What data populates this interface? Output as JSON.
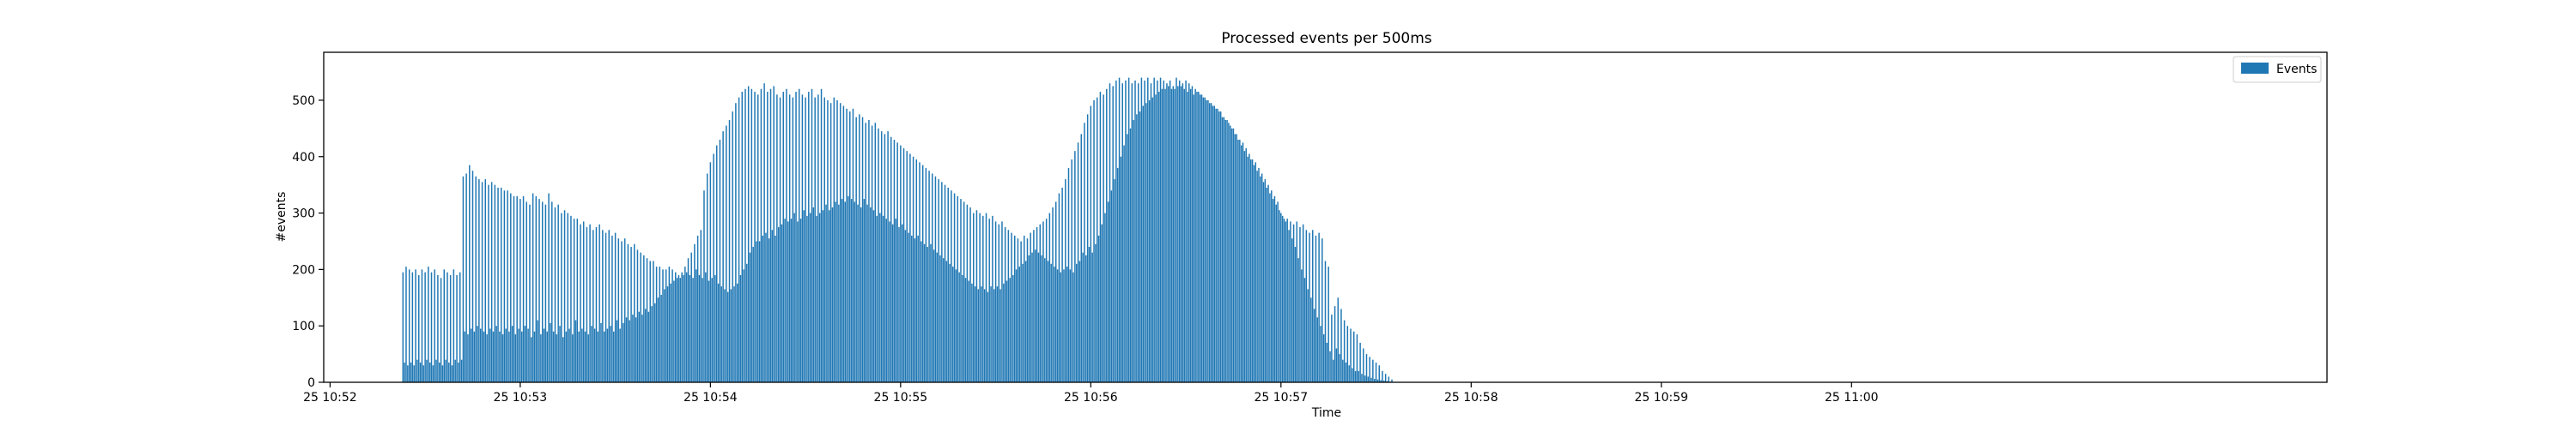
{
  "chart_data": {
    "type": "bar",
    "title": "Processed events per 500ms",
    "xlabel": "Time",
    "ylabel": "#events",
    "ylim": [
      0,
      585
    ],
    "xlim": [
      "25 10:51:58",
      "25 11:02:30"
    ],
    "yticks": [
      0,
      100,
      200,
      300,
      400,
      500
    ],
    "xticks": [
      {
        "t": "25 10:52:00",
        "label": "25 10:52"
      },
      {
        "t": "25 10:53:00",
        "label": "25 10:53"
      },
      {
        "t": "25 10:54:00",
        "label": "25 10:54"
      },
      {
        "t": "25 10:55:00",
        "label": "25 10:55"
      },
      {
        "t": "25 10:56:00",
        "label": "25 10:56"
      },
      {
        "t": "25 10:57:00",
        "label": "25 10:57"
      },
      {
        "t": "25 10:58:00",
        "label": "25 10:58"
      },
      {
        "t": "25 10:59:00",
        "label": "25 10:59"
      },
      {
        "t": "25 11:00:00",
        "label": "25 11:00"
      }
    ],
    "legend_position": "upper right",
    "grid": false,
    "series": [
      {
        "name": "Events",
        "color": "#1f77b4",
        "x_start": "25 10:52:23",
        "x_step_seconds": 0.5,
        "values": [
          195,
          35,
          205,
          30,
          200,
          35,
          195,
          30,
          200,
          40,
          190,
          35,
          200,
          30,
          195,
          40,
          205,
          35,
          195,
          30,
          200,
          40,
          190,
          35,
          185,
          30,
          200,
          40,
          195,
          35,
          190,
          30,
          200,
          40,
          190,
          35,
          195,
          40,
          365,
          90,
          370,
          85,
          385,
          95,
          375,
          90,
          365,
          100,
          360,
          95,
          355,
          90,
          360,
          85,
          350,
          95,
          355,
          90,
          350,
          100,
          345,
          90,
          345,
          85,
          340,
          95,
          340,
          90,
          335,
          100,
          330,
          85,
          330,
          95,
          325,
          90,
          330,
          100,
          320,
          95,
          315,
          80,
          335,
          90,
          330,
          110,
          325,
          85,
          320,
          95,
          315,
          90,
          335,
          105,
          320,
          90,
          310,
          85,
          315,
          100,
          300,
          80,
          305,
          90,
          300,
          95,
          295,
          85,
          290,
          110,
          290,
          90,
          280,
          95,
          285,
          90,
          275,
          85,
          280,
          100,
          270,
          95,
          275,
          90,
          280,
          105,
          270,
          90,
          265,
          95,
          270,
          100,
          260,
          90,
          265,
          110,
          255,
          95,
          250,
          105,
          255,
          115,
          245,
          110,
          240,
          120,
          245,
          115,
          235,
          125,
          230,
          120,
          225,
          130,
          220,
          125,
          215,
          135,
          215,
          140,
          205,
          150,
          205,
          155,
          200,
          165,
          200,
          170,
          205,
          175,
          200,
          180,
          195,
          185,
          190,
          185,
          195,
          190,
          205,
          195,
          220,
          190,
          230,
          185,
          245,
          200,
          260,
          190,
          270,
          185,
          340,
          195,
          370,
          180,
          390,
          185,
          405,
          190,
          420,
          175,
          430,
          170,
          445,
          165,
          455,
          160,
          465,
          165,
          480,
          170,
          495,
          175,
          505,
          190,
          515,
          200,
          520,
          210,
          525,
          230,
          520,
          240,
          515,
          250,
          510,
          250,
          520,
          260,
          530,
          265,
          515,
          255,
          520,
          270,
          525,
          260,
          510,
          275,
          505,
          280,
          515,
          290,
          520,
          285,
          510,
          290,
          505,
          300,
          515,
          285,
          520,
          290,
          510,
          305,
          505,
          295,
          515,
          300,
          520,
          310,
          505,
          295,
          510,
          300,
          520,
          305,
          505,
          315,
          500,
          305,
          495,
          310,
          505,
          320,
          500,
          315,
          495,
          325,
          490,
          320,
          485,
          330,
          480,
          325,
          485,
          320,
          470,
          315,
          475,
          310,
          470,
          325,
          460,
          315,
          465,
          310,
          455,
          305,
          460,
          295,
          450,
          300,
          445,
          295,
          440,
          290,
          445,
          285,
          435,
          280,
          430,
          290,
          425,
          275,
          420,
          280,
          415,
          270,
          410,
          265,
          405,
          260,
          400,
          255,
          395,
          260,
          390,
          250,
          385,
          245,
          380,
          240,
          375,
          245,
          370,
          235,
          365,
          230,
          360,
          225,
          355,
          220,
          350,
          215,
          345,
          210,
          340,
          205,
          335,
          200,
          330,
          195,
          325,
          190,
          320,
          185,
          315,
          180,
          310,
          175,
          300,
          170,
          305,
          165,
          300,
          170,
          295,
          165,
          300,
          160,
          290,
          170,
          295,
          165,
          285,
          170,
          280,
          165,
          285,
          175,
          275,
          180,
          270,
          185,
          265,
          190,
          260,
          200,
          255,
          205,
          250,
          210,
          260,
          215,
          255,
          225,
          265,
          230,
          270,
          235,
          275,
          230,
          280,
          225,
          285,
          220,
          290,
          215,
          300,
          210,
          310,
          205,
          320,
          200,
          335,
          195,
          345,
          200,
          360,
          205,
          380,
          200,
          395,
          195,
          410,
          210,
          425,
          215,
          440,
          230,
          460,
          225,
          475,
          240,
          490,
          230,
          500,
          245,
          505,
          260,
          515,
          280,
          510,
          300,
          520,
          320,
          530,
          340,
          525,
          360,
          535,
          380,
          540,
          400,
          530,
          420,
          535,
          440,
          540,
          450,
          530,
          465,
          535,
          475,
          530,
          480,
          540,
          490,
          535,
          495,
          540,
          500,
          530,
          505,
          540,
          510,
          535,
          515,
          540,
          520,
          535,
          520,
          530,
          525,
          535,
          520,
          525,
          520,
          540,
          525,
          535,
          525,
          530,
          520,
          535,
          515,
          530,
          520,
          525,
          510,
          520,
          515,
          515,
          510,
          510,
          505,
          505,
          500,
          500,
          495,
          495,
          490,
          490,
          485,
          485,
          480,
          480,
          470,
          470,
          465,
          465,
          460,
          455,
          450,
          450,
          440,
          440,
          430,
          430,
          420,
          425,
          410,
          415,
          400,
          405,
          395,
          395,
          385,
          390,
          375,
          380,
          365,
          370,
          355,
          360,
          345,
          350,
          335,
          340,
          325,
          330,
          315,
          320,
          305,
          300,
          295,
          290,
          285,
          290,
          270,
          285,
          255,
          280,
          240,
          285,
          220,
          275,
          200,
          280,
          185,
          270,
          165,
          265,
          150,
          270,
          130,
          260,
          115,
          265,
          100,
          255,
          85,
          215,
          70,
          205,
          55,
          120,
          40,
          135,
          60,
          150,
          50,
          130,
          40,
          110,
          35,
          100,
          30,
          95,
          25,
          90,
          20,
          85,
          20,
          70,
          15,
          60,
          12,
          50,
          10,
          45,
          8,
          40,
          6,
          35,
          5,
          30,
          4,
          20,
          3,
          15,
          2,
          10,
          1,
          5,
          0
        ]
      }
    ]
  }
}
